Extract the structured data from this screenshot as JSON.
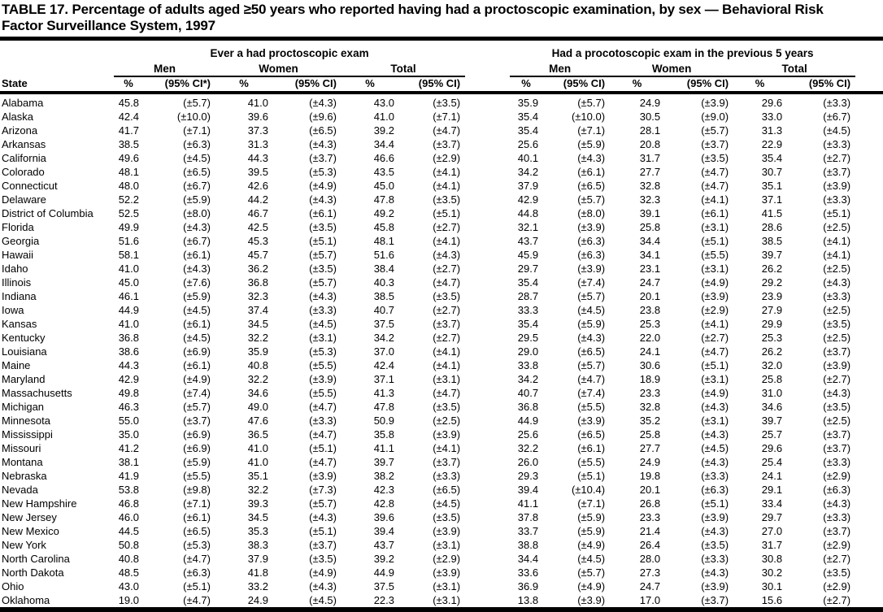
{
  "page": {
    "title_line1": "TABLE 17. Percentage of adults aged ≥50 years who reported having had a proctoscopic examination, by sex — Behavioral Risk",
    "title_line2": "Factor Surveillance System, 1997"
  },
  "table": {
    "state_header": "State",
    "group1": {
      "label": "Ever a had proctoscopic exam",
      "columns": [
        "Men",
        "Women",
        "Total"
      ],
      "sub_headers": [
        "%",
        "(95% CI*)",
        "%",
        "(95% CI)",
        "%",
        "(95% CI)"
      ]
    },
    "group2": {
      "label": "Had a procotoscopic exam in the previous 5 years",
      "columns": [
        "Men",
        "Women",
        "Total"
      ],
      "sub_headers": [
        "%",
        "(95% CI)",
        "%",
        "(95% CI)",
        "%",
        "(95% CI)"
      ]
    },
    "rows": [
      {
        "state": "Alabama",
        "values": [
          "45.8",
          "(±5.7)",
          "41.0",
          "(±4.3)",
          "43.0",
          "(±3.5)",
          "35.9",
          "(±5.7)",
          "24.9",
          "(±3.9)",
          "29.6",
          "(±3.3)"
        ]
      },
      {
        "state": "Alaska",
        "values": [
          "42.4",
          "(±10.0)",
          "39.6",
          "(±9.6)",
          "41.0",
          "(±7.1)",
          "35.4",
          "(±10.0)",
          "30.5",
          "(±9.0)",
          "33.0",
          "(±6.7)"
        ]
      },
      {
        "state": "Arizona",
        "values": [
          "41.7",
          "(±7.1)",
          "37.3",
          "(±6.5)",
          "39.2",
          "(±4.7)",
          "35.4",
          "(±7.1)",
          "28.1",
          "(±5.7)",
          "31.3",
          "(±4.5)"
        ]
      },
      {
        "state": "Arkansas",
        "values": [
          "38.5",
          "(±6.3)",
          "31.3",
          "(±4.3)",
          "34.4",
          "(±3.7)",
          "25.6",
          "(±5.9)",
          "20.8",
          "(±3.7)",
          "22.9",
          "(±3.3)"
        ]
      },
      {
        "state": "California",
        "values": [
          "49.6",
          "(±4.5)",
          "44.3",
          "(±3.7)",
          "46.6",
          "(±2.9)",
          "40.1",
          "(±4.3)",
          "31.7",
          "(±3.5)",
          "35.4",
          "(±2.7)"
        ]
      },
      {
        "state": "Colorado",
        "values": [
          "48.1",
          "(±6.5)",
          "39.5",
          "(±5.3)",
          "43.5",
          "(±4.1)",
          "34.2",
          "(±6.1)",
          "27.7",
          "(±4.7)",
          "30.7",
          "(±3.7)"
        ]
      },
      {
        "state": "Connecticut",
        "values": [
          "48.0",
          "(±6.7)",
          "42.6",
          "(±4.9)",
          "45.0",
          "(±4.1)",
          "37.9",
          "(±6.5)",
          "32.8",
          "(±4.7)",
          "35.1",
          "(±3.9)"
        ]
      },
      {
        "state": "Delaware",
        "values": [
          "52.2",
          "(±5.9)",
          "44.2",
          "(±4.3)",
          "47.8",
          "(±3.5)",
          "42.9",
          "(±5.7)",
          "32.3",
          "(±4.1)",
          "37.1",
          "(±3.3)"
        ]
      },
      {
        "state": "District of Columbia",
        "values": [
          "52.5",
          "(±8.0)",
          "46.7",
          "(±6.1)",
          "49.2",
          "(±5.1)",
          "44.8",
          "(±8.0)",
          "39.1",
          "(±6.1)",
          "41.5",
          "(±5.1)"
        ]
      },
      {
        "state": "Florida",
        "values": [
          "49.9",
          "(±4.3)",
          "42.5",
          "(±3.5)",
          "45.8",
          "(±2.7)",
          "32.1",
          "(±3.9)",
          "25.8",
          "(±3.1)",
          "28.6",
          "(±2.5)"
        ]
      },
      {
        "state": "Georgia",
        "values": [
          "51.6",
          "(±6.7)",
          "45.3",
          "(±5.1)",
          "48.1",
          "(±4.1)",
          "43.7",
          "(±6.3)",
          "34.4",
          "(±5.1)",
          "38.5",
          "(±4.1)"
        ]
      },
      {
        "state": "Hawaii",
        "values": [
          "58.1",
          "(±6.1)",
          "45.7",
          "(±5.7)",
          "51.6",
          "(±4.3)",
          "45.9",
          "(±6.3)",
          "34.1",
          "(±5.5)",
          "39.7",
          "(±4.1)"
        ]
      },
      {
        "state": "Idaho",
        "values": [
          "41.0",
          "(±4.3)",
          "36.2",
          "(±3.5)",
          "38.4",
          "(±2.7)",
          "29.7",
          "(±3.9)",
          "23.1",
          "(±3.1)",
          "26.2",
          "(±2.5)"
        ]
      },
      {
        "state": "Illinois",
        "values": [
          "45.0",
          "(±7.6)",
          "36.8",
          "(±5.7)",
          "40.3",
          "(±4.7)",
          "35.4",
          "(±7.4)",
          "24.7",
          "(±4.9)",
          "29.2",
          "(±4.3)"
        ]
      },
      {
        "state": "Indiana",
        "values": [
          "46.1",
          "(±5.9)",
          "32.3",
          "(±4.3)",
          "38.5",
          "(±3.5)",
          "28.7",
          "(±5.7)",
          "20.1",
          "(±3.9)",
          "23.9",
          "(±3.3)"
        ]
      },
      {
        "state": "Iowa",
        "values": [
          "44.9",
          "(±4.5)",
          "37.4",
          "(±3.3)",
          "40.7",
          "(±2.7)",
          "33.3",
          "(±4.5)",
          "23.8",
          "(±2.9)",
          "27.9",
          "(±2.5)"
        ]
      },
      {
        "state": "Kansas",
        "values": [
          "41.0",
          "(±6.1)",
          "34.5",
          "(±4.5)",
          "37.5",
          "(±3.7)",
          "35.4",
          "(±5.9)",
          "25.3",
          "(±4.1)",
          "29.9",
          "(±3.5)"
        ]
      },
      {
        "state": "Kentucky",
        "values": [
          "36.8",
          "(±4.5)",
          "32.2",
          "(±3.1)",
          "34.2",
          "(±2.7)",
          "29.5",
          "(±4.3)",
          "22.0",
          "(±2.7)",
          "25.3",
          "(±2.5)"
        ]
      },
      {
        "state": "Louisiana",
        "values": [
          "38.6",
          "(±6.9)",
          "35.9",
          "(±5.3)",
          "37.0",
          "(±4.1)",
          "29.0",
          "(±6.5)",
          "24.1",
          "(±4.7)",
          "26.2",
          "(±3.7)"
        ]
      },
      {
        "state": "Maine",
        "values": [
          "44.3",
          "(±6.1)",
          "40.8",
          "(±5.5)",
          "42.4",
          "(±4.1)",
          "33.8",
          "(±5.7)",
          "30.6",
          "(±5.1)",
          "32.0",
          "(±3.9)"
        ]
      },
      {
        "state": "Maryland",
        "values": [
          "42.9",
          "(±4.9)",
          "32.2",
          "(±3.9)",
          "37.1",
          "(±3.1)",
          "34.2",
          "(±4.7)",
          "18.9",
          "(±3.1)",
          "25.8",
          "(±2.7)"
        ]
      },
      {
        "state": "Massachusetts",
        "values": [
          "49.8",
          "(±7.4)",
          "34.6",
          "(±5.5)",
          "41.3",
          "(±4.7)",
          "40.7",
          "(±7.4)",
          "23.3",
          "(±4.9)",
          "31.0",
          "(±4.3)"
        ]
      },
      {
        "state": "Michigan",
        "values": [
          "46.3",
          "(±5.7)",
          "49.0",
          "(±4.7)",
          "47.8",
          "(±3.5)",
          "36.8",
          "(±5.5)",
          "32.8",
          "(±4.3)",
          "34.6",
          "(±3.5)"
        ]
      },
      {
        "state": "Minnesota",
        "values": [
          "55.0",
          "(±3.7)",
          "47.6",
          "(±3.3)",
          "50.9",
          "(±2.5)",
          "44.9",
          "(±3.9)",
          "35.2",
          "(±3.1)",
          "39.7",
          "(±2.5)"
        ]
      },
      {
        "state": "Mississippi",
        "values": [
          "35.0",
          "(±6.9)",
          "36.5",
          "(±4.7)",
          "35.8",
          "(±3.9)",
          "25.6",
          "(±6.5)",
          "25.8",
          "(±4.3)",
          "25.7",
          "(±3.7)"
        ]
      },
      {
        "state": "Missouri",
        "values": [
          "41.2",
          "(±6.9)",
          "41.0",
          "(±5.1)",
          "41.1",
          "(±4.1)",
          "32.2",
          "(±6.1)",
          "27.7",
          "(±4.5)",
          "29.6",
          "(±3.7)"
        ]
      },
      {
        "state": "Montana",
        "values": [
          "38.1",
          "(±5.9)",
          "41.0",
          "(±4.7)",
          "39.7",
          "(±3.7)",
          "26.0",
          "(±5.5)",
          "24.9",
          "(±4.3)",
          "25.4",
          "(±3.3)"
        ]
      },
      {
        "state": "Nebraska",
        "values": [
          "41.9",
          "(±5.5)",
          "35.1",
          "(±3.9)",
          "38.2",
          "(±3.3)",
          "29.3",
          "(±5.1)",
          "19.8",
          "(±3.3)",
          "24.1",
          "(±2.9)"
        ]
      },
      {
        "state": "Nevada",
        "values": [
          "53.8",
          "(±9.8)",
          "32.2",
          "(±7.3)",
          "42.3",
          "(±6.5)",
          "39.4",
          "(±10.4)",
          "20.1",
          "(±6.3)",
          "29.1",
          "(±6.3)"
        ]
      },
      {
        "state": "New Hampshire",
        "values": [
          "46.8",
          "(±7.1)",
          "39.3",
          "(±5.7)",
          "42.8",
          "(±4.5)",
          "41.1",
          "(±7.1)",
          "26.8",
          "(±5.1)",
          "33.4",
          "(±4.3)"
        ]
      },
      {
        "state": "New Jersey",
        "values": [
          "46.0",
          "(±6.1)",
          "34.5",
          "(±4.3)",
          "39.6",
          "(±3.5)",
          "37.8",
          "(±5.9)",
          "23.3",
          "(±3.9)",
          "29.7",
          "(±3.3)"
        ]
      },
      {
        "state": "New Mexico",
        "values": [
          "44.5",
          "(±6.5)",
          "35.3",
          "(±5.1)",
          "39.4",
          "(±3.9)",
          "33.7",
          "(±5.9)",
          "21.4",
          "(±4.3)",
          "27.0",
          "(±3.7)"
        ]
      },
      {
        "state": "New York",
        "values": [
          "50.8",
          "(±5.3)",
          "38.3",
          "(±3.7)",
          "43.7",
          "(±3.1)",
          "38.8",
          "(±4.9)",
          "26.4",
          "(±3.5)",
          "31.7",
          "(±2.9)"
        ]
      },
      {
        "state": "North Carolina",
        "values": [
          "40.8",
          "(±4.7)",
          "37.9",
          "(±3.5)",
          "39.2",
          "(±2.9)",
          "34.4",
          "(±4.5)",
          "28.0",
          "(±3.3)",
          "30.8",
          "(±2.7)"
        ]
      },
      {
        "state": "North Dakota",
        "values": [
          "48.5",
          "(±6.3)",
          "41.8",
          "(±4.9)",
          "44.9",
          "(±3.9)",
          "33.6",
          "(±5.7)",
          "27.3",
          "(±4.3)",
          "30.2",
          "(±3.5)"
        ]
      },
      {
        "state": "Ohio",
        "values": [
          "43.0",
          "(±5.1)",
          "33.2",
          "(±4.3)",
          "37.5",
          "(±3.1)",
          "36.9",
          "(±4.9)",
          "24.7",
          "(±3.9)",
          "30.1",
          "(±2.9)"
        ]
      },
      {
        "state": "Oklahoma",
        "values": [
          "19.0",
          "(±4.7)",
          "24.9",
          "(±4.5)",
          "22.3",
          "(±3.1)",
          "13.8",
          "(±3.9)",
          "17.0",
          "(±3.7)",
          "15.6",
          "(±2.7)"
        ]
      }
    ]
  }
}
